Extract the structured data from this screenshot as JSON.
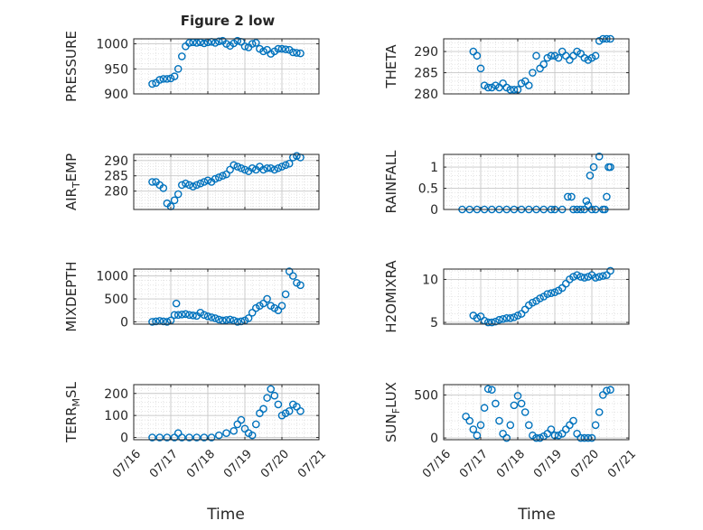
{
  "figure_title": "Figure 2 low",
  "colors": {
    "marker": "#0072bd",
    "axes": "#262626",
    "grid": "#d4d4d4",
    "background": "#ffffff"
  },
  "x_axis": {
    "label": "Time",
    "ticks": [
      16,
      17,
      18,
      19,
      20,
      21
    ],
    "tick_labels": [
      "07/16",
      "07/17",
      "07/18",
      "07/19",
      "07/20",
      "07/21"
    ]
  },
  "chart_data": [
    {
      "type": "scatter",
      "title": "Figure 2 low",
      "ylabel": "PRESSURE",
      "xlim": [
        16,
        21
      ],
      "ylim": [
        900,
        1010
      ],
      "yticks": [
        900,
        950,
        1000
      ],
      "ytick_labels": [
        "900",
        "950",
        "1000"
      ],
      "x_tick_labels_shown": false,
      "grid": true,
      "minor_grid": true,
      "series": [
        {
          "x": [
            16.5,
            16.6,
            16.7,
            16.8,
            16.9,
            17.0,
            17.1,
            17.2,
            17.3,
            17.4,
            17.5,
            17.6,
            17.7,
            17.8,
            17.9,
            18.0,
            18.1,
            18.2,
            18.3,
            18.4,
            18.5,
            18.6,
            18.7,
            18.8,
            18.9,
            19.0,
            19.1,
            19.2,
            19.3,
            19.4,
            19.5,
            19.6,
            19.7,
            19.8,
            19.9,
            20.0,
            20.1,
            20.2,
            20.3,
            20.4,
            20.5
          ],
          "y": [
            920,
            922,
            928,
            930,
            930,
            931,
            935,
            950,
            975,
            995,
            1002,
            1003,
            1002,
            1003,
            1001,
            1003,
            1004,
            1002,
            1005,
            1006,
            1000,
            996,
            1001,
            1006,
            1004,
            995,
            993,
            1000,
            1002,
            990,
            985,
            988,
            980,
            985,
            990,
            990,
            989,
            988,
            983,
            982,
            981
          ]
        }
      ]
    },
    {
      "type": "scatter",
      "ylabel": "THETA",
      "xlim": [
        16,
        21
      ],
      "ylim": [
        280,
        293
      ],
      "yticks": [
        280,
        285,
        290
      ],
      "ytick_labels": [
        "280",
        "285",
        "290"
      ],
      "x_tick_labels_shown": false,
      "grid": true,
      "minor_grid": true,
      "series": [
        {
          "x": [
            16.8,
            16.9,
            17.0,
            17.1,
            17.2,
            17.3,
            17.4,
            17.5,
            17.6,
            17.7,
            17.8,
            17.9,
            18.0,
            18.1,
            18.2,
            18.3,
            18.4,
            18.5,
            18.6,
            18.7,
            18.8,
            18.9,
            19.0,
            19.1,
            19.2,
            19.3,
            19.4,
            19.5,
            19.6,
            19.7,
            19.8,
            19.9,
            20.0,
            20.1,
            20.2,
            20.3,
            20.4,
            20.5
          ],
          "y": [
            290,
            289,
            286,
            282,
            281.5,
            281.5,
            282,
            281.5,
            282.5,
            281.5,
            281,
            281,
            281,
            282.5,
            283,
            282,
            285,
            289,
            286,
            287,
            288.5,
            289,
            289,
            288.5,
            290,
            289,
            288,
            289,
            290,
            289.5,
            288.5,
            288,
            288.5,
            289,
            292.5,
            293,
            293,
            293
          ]
        }
      ]
    },
    {
      "type": "scatter",
      "ylabel": "AIR_TEMP",
      "xlim": [
        16,
        21
      ],
      "ylim": [
        274,
        292
      ],
      "yticks": [
        280,
        285,
        290
      ],
      "ytick_labels": [
        "280",
        "285",
        "290"
      ],
      "x_tick_labels_shown": false,
      "grid": true,
      "minor_grid": true,
      "series": [
        {
          "x": [
            16.5,
            16.6,
            16.7,
            16.8,
            16.9,
            17.0,
            17.1,
            17.2,
            17.3,
            17.4,
            17.5,
            17.6,
            17.7,
            17.8,
            17.9,
            18.0,
            18.1,
            18.2,
            18.3,
            18.4,
            18.5,
            18.6,
            18.7,
            18.8,
            18.9,
            19.0,
            19.1,
            19.2,
            19.3,
            19.4,
            19.5,
            19.6,
            19.7,
            19.8,
            19.9,
            20.0,
            20.1,
            20.2,
            20.3,
            20.4,
            20.5
          ],
          "y": [
            283,
            283,
            282,
            281,
            276,
            275,
            277,
            279,
            282,
            282.5,
            282,
            281.5,
            282,
            282.5,
            283,
            283.5,
            283,
            284,
            284.5,
            285,
            285.5,
            287,
            288.5,
            288,
            287.5,
            287,
            286.5,
            287.5,
            287,
            288,
            287,
            287.5,
            287.5,
            287,
            287.5,
            288,
            288.5,
            289,
            291,
            291.5,
            291
          ]
        }
      ]
    },
    {
      "type": "scatter",
      "ylabel": "RAINFALL",
      "xlim": [
        16,
        21
      ],
      "ylim": [
        0,
        1.3
      ],
      "yticks": [
        0,
        0.5,
        1
      ],
      "ytick_labels": [
        "0",
        "0.5",
        "1"
      ],
      "x_tick_labels_shown": false,
      "grid": true,
      "minor_grid": true,
      "series": [
        {
          "x": [
            16.5,
            16.7,
            16.9,
            17.1,
            17.3,
            17.5,
            17.7,
            17.9,
            18.1,
            18.3,
            18.5,
            18.7,
            18.9,
            19.0,
            19.2,
            19.35,
            19.45,
            19.5,
            19.6,
            19.7,
            19.8,
            19.85,
            19.9,
            19.95,
            20.0,
            20.05,
            20.1,
            20.2,
            20.3,
            20.35,
            20.4,
            20.45,
            20.5
          ],
          "y": [
            0,
            0,
            0,
            0,
            0,
            0,
            0,
            0,
            0,
            0,
            0,
            0,
            0,
            0,
            0,
            0.3,
            0.3,
            0,
            0,
            0,
            0,
            0.2,
            0.1,
            0.8,
            0,
            1.0,
            0,
            1.25,
            0,
            0,
            0.3,
            1.0,
            1.0
          ]
        }
      ]
    },
    {
      "type": "scatter",
      "ylabel": "MIXDEPTH",
      "xlim": [
        16,
        21
      ],
      "ylim": [
        -50,
        1150
      ],
      "yticks": [
        0,
        500,
        1000
      ],
      "ytick_labels": [
        "0",
        "500",
        "1000"
      ],
      "x_tick_labels_shown": false,
      "grid": true,
      "minor_grid": true,
      "series": [
        {
          "x": [
            16.5,
            16.6,
            16.7,
            16.8,
            16.9,
            17.0,
            17.1,
            17.15,
            17.2,
            17.3,
            17.4,
            17.5,
            17.6,
            17.7,
            17.8,
            17.9,
            18.0,
            18.1,
            18.2,
            18.3,
            18.4,
            18.5,
            18.6,
            18.7,
            18.8,
            18.9,
            19.0,
            19.1,
            19.2,
            19.3,
            19.4,
            19.5,
            19.6,
            19.7,
            19.8,
            19.9,
            20.0,
            20.1,
            20.2,
            20.3,
            20.4,
            20.5
          ],
          "y": [
            0,
            10,
            20,
            10,
            0,
            30,
            150,
            400,
            150,
            160,
            170,
            150,
            140,
            130,
            200,
            150,
            120,
            100,
            80,
            50,
            30,
            40,
            50,
            30,
            0,
            10,
            30,
            80,
            200,
            300,
            350,
            400,
            500,
            350,
            300,
            250,
            350,
            600,
            1100,
            1000,
            850,
            800
          ]
        }
      ]
    },
    {
      "type": "scatter",
      "ylabel": "H2OMIXRA",
      "xlim": [
        16,
        21
      ],
      "ylim": [
        4.8,
        11.2
      ],
      "yticks": [
        5,
        10
      ],
      "ytick_labels": [
        "5",
        "10"
      ],
      "x_tick_labels_shown": false,
      "grid": true,
      "minor_grid": true,
      "series": [
        {
          "x": [
            16.8,
            16.9,
            17.0,
            17.1,
            17.2,
            17.3,
            17.4,
            17.5,
            17.6,
            17.7,
            17.8,
            17.9,
            18.0,
            18.1,
            18.2,
            18.3,
            18.4,
            18.5,
            18.6,
            18.7,
            18.8,
            18.9,
            19.0,
            19.1,
            19.2,
            19.3,
            19.4,
            19.5,
            19.6,
            19.7,
            19.8,
            19.9,
            20.0,
            20.1,
            20.2,
            20.3,
            20.4,
            20.5
          ],
          "y": [
            5.8,
            5.5,
            5.7,
            5.2,
            5.0,
            5.0,
            5.1,
            5.3,
            5.4,
            5.5,
            5.5,
            5.6,
            5.8,
            6.0,
            6.5,
            7.0,
            7.3,
            7.5,
            7.8,
            8.0,
            8.3,
            8.4,
            8.5,
            8.7,
            9.0,
            9.5,
            10.0,
            10.3,
            10.5,
            10.3,
            10.2,
            10.3,
            10.5,
            10.2,
            10.3,
            10.4,
            10.5,
            11.0
          ]
        }
      ]
    },
    {
      "type": "scatter",
      "ylabel": "TERR_MSL",
      "xlim": [
        16,
        21
      ],
      "ylim": [
        -10,
        240
      ],
      "yticks": [
        0,
        100,
        200
      ],
      "ytick_labels": [
        "0",
        "100",
        "200"
      ],
      "x_tick_labels_shown": true,
      "grid": true,
      "minor_grid": true,
      "series": [
        {
          "x": [
            16.5,
            16.7,
            16.9,
            17.1,
            17.2,
            17.3,
            17.5,
            17.7,
            17.9,
            18.1,
            18.3,
            18.5,
            18.7,
            18.8,
            18.9,
            19.0,
            19.1,
            19.2,
            19.3,
            19.4,
            19.5,
            19.6,
            19.7,
            19.8,
            19.9,
            20.0,
            20.1,
            20.2,
            20.3,
            20.4,
            20.5
          ],
          "y": [
            0,
            0,
            0,
            0,
            20,
            0,
            0,
            0,
            0,
            0,
            10,
            20,
            30,
            60,
            80,
            40,
            20,
            10,
            60,
            110,
            130,
            180,
            220,
            190,
            150,
            100,
            110,
            120,
            150,
            140,
            120
          ]
        }
      ]
    },
    {
      "type": "scatter",
      "ylabel": "SUN_FLUX",
      "xlim": [
        16,
        21
      ],
      "ylim": [
        -20,
        620
      ],
      "yticks": [
        0,
        500
      ],
      "ytick_labels": [
        "0",
        "500"
      ],
      "x_tick_labels_shown": true,
      "grid": true,
      "minor_grid": true,
      "series": [
        {
          "x": [
            16.6,
            16.7,
            16.8,
            16.9,
            17.0,
            17.1,
            17.2,
            17.3,
            17.4,
            17.5,
            17.6,
            17.7,
            17.8,
            17.9,
            18.0,
            18.1,
            18.2,
            18.3,
            18.4,
            18.5,
            18.6,
            18.7,
            18.8,
            18.9,
            19.0,
            19.1,
            19.2,
            19.3,
            19.4,
            19.5,
            19.6,
            19.7,
            19.8,
            19.9,
            20.0,
            20.1,
            20.2,
            20.3,
            20.4,
            20.5
          ],
          "y": [
            250,
            200,
            100,
            30,
            150,
            350,
            570,
            560,
            400,
            200,
            50,
            0,
            150,
            380,
            490,
            400,
            300,
            150,
            30,
            0,
            0,
            20,
            50,
            100,
            30,
            30,
            50,
            100,
            150,
            200,
            50,
            0,
            0,
            0,
            0,
            150,
            300,
            500,
            550,
            560
          ]
        }
      ]
    }
  ]
}
